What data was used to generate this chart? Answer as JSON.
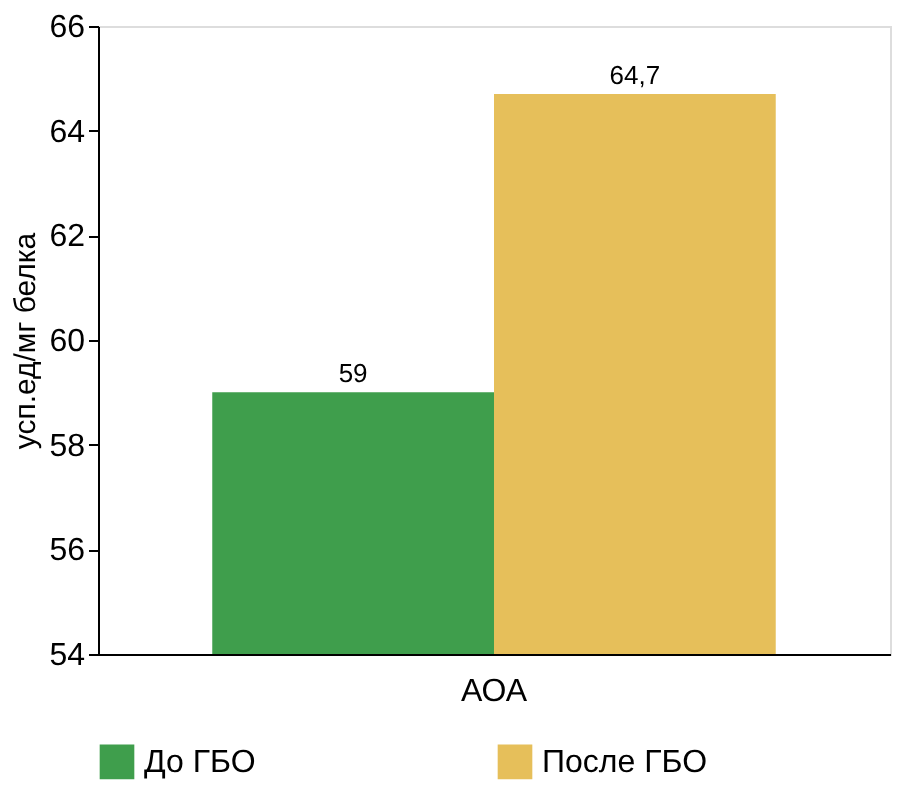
{
  "chart_data": {
    "type": "bar",
    "categories": [
      "АОА"
    ],
    "series": [
      {
        "name": "До ГБО",
        "color": "#3f9e4c",
        "values": [
          59
        ],
        "value_labels": [
          "59"
        ]
      },
      {
        "name": "После ГБО",
        "color": "#e6bf5a",
        "values": [
          64.7
        ],
        "value_labels": [
          "64,7"
        ]
      }
    ],
    "ylabel": "усп.ед/мг белка",
    "ylim": [
      54,
      66
    ],
    "yticks": [
      54,
      56,
      58,
      60,
      62,
      64,
      66
    ],
    "grid": false,
    "legend": "bottom"
  }
}
